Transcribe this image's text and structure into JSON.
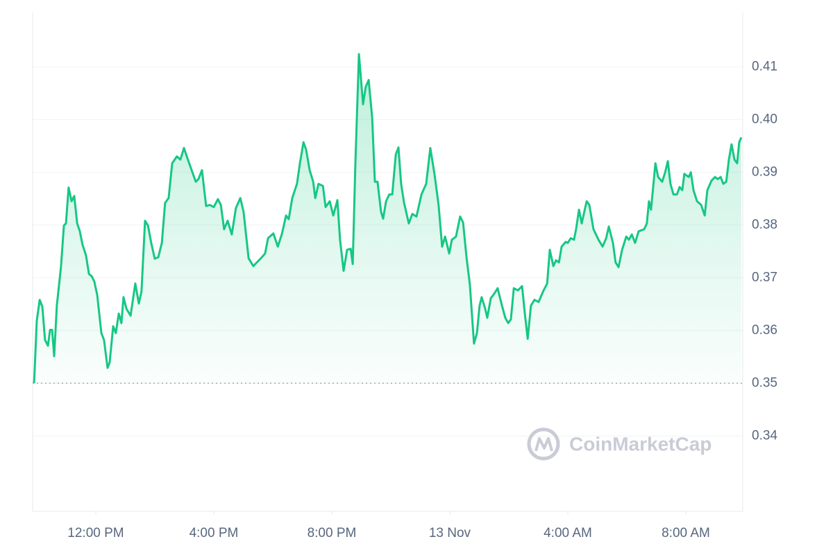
{
  "chart_data": {
    "type": "line",
    "x": [
      9.91,
      10.0,
      10.1,
      10.19,
      10.28,
      10.38,
      10.45,
      10.52,
      10.59,
      10.68,
      10.82,
      10.92,
      10.99,
      11.08,
      11.18,
      11.27,
      11.37,
      11.46,
      11.55,
      11.67,
      11.77,
      11.86,
      11.95,
      12.05,
      12.19,
      12.28,
      12.4,
      12.47,
      12.59,
      12.68,
      12.78,
      12.87,
      12.94,
      13.04,
      13.18,
      13.34,
      13.46,
      13.55,
      13.67,
      13.77,
      13.88,
      14.0,
      14.12,
      14.24,
      14.35,
      14.47,
      14.59,
      14.75,
      14.87,
      14.99,
      15.11,
      15.25,
      15.39,
      15.48,
      15.6,
      15.74,
      15.86,
      16.0,
      16.14,
      16.24,
      16.35,
      16.47,
      16.61,
      16.75,
      16.9,
      17.01,
      17.18,
      17.34,
      17.46,
      17.6,
      17.74,
      17.84,
      18.02,
      18.17,
      18.31,
      18.45,
      18.54,
      18.66,
      18.82,
      18.92,
      19.04,
      19.13,
      19.25,
      19.37,
      19.44,
      19.55,
      19.7,
      19.79,
      19.93,
      20.05,
      20.19,
      20.28,
      20.4,
      20.52,
      20.64,
      20.71,
      20.8,
      20.92,
      21.06,
      21.15,
      21.25,
      21.37,
      21.46,
      21.55,
      21.67,
      21.74,
      21.84,
      21.95,
      22.05,
      22.17,
      22.26,
      22.35,
      22.45,
      22.61,
      22.73,
      22.87,
      23.04,
      23.2,
      23.34,
      23.48,
      23.62,
      23.74,
      23.84,
      23.98,
      24.07,
      24.21,
      24.35,
      24.45,
      24.57,
      24.68,
      24.82,
      24.92,
      25.01,
      25.08,
      25.2,
      25.27,
      25.39,
      25.51,
      25.62,
      25.77,
      25.88,
      25.98,
      26.07,
      26.17,
      26.31,
      26.45,
      26.54,
      26.64,
      26.75,
      26.87,
      27.01,
      27.18,
      27.3,
      27.39,
      27.51,
      27.6,
      27.7,
      27.79,
      27.93,
      28.0,
      28.1,
      28.21,
      28.28,
      28.38,
      28.47,
      28.64,
      28.73,
      28.87,
      29.04,
      29.18,
      29.3,
      29.39,
      29.53,
      29.62,
      29.72,
      29.84,
      29.98,
      30.07,
      30.17,
      30.28,
      30.4,
      30.59,
      30.68,
      30.75,
      30.82,
      30.97,
      31.06,
      31.2,
      31.3,
      31.39,
      31.48,
      31.58,
      31.7,
      31.79,
      31.88,
      31.95,
      32.1,
      32.17,
      32.26,
      32.38,
      32.52,
      32.64,
      32.73,
      32.87,
      32.99,
      33.08,
      33.18,
      33.27,
      33.37,
      33.46,
      33.55,
      33.65,
      33.74,
      33.81,
      33.88
    ],
    "values": [
      0.35,
      0.3618,
      0.3658,
      0.3645,
      0.3582,
      0.3571,
      0.3601,
      0.3601,
      0.3551,
      0.3647,
      0.372,
      0.3799,
      0.3803,
      0.3871,
      0.3845,
      0.3855,
      0.3803,
      0.3788,
      0.3763,
      0.3742,
      0.3707,
      0.3703,
      0.3693,
      0.3667,
      0.3595,
      0.3582,
      0.3529,
      0.3539,
      0.3608,
      0.3595,
      0.3632,
      0.3614,
      0.3663,
      0.3641,
      0.3628,
      0.3689,
      0.3651,
      0.3674,
      0.3808,
      0.3799,
      0.3766,
      0.3736,
      0.3739,
      0.3766,
      0.3842,
      0.3851,
      0.3917,
      0.393,
      0.3924,
      0.3946,
      0.3926,
      0.3904,
      0.3882,
      0.3887,
      0.3904,
      0.3836,
      0.3838,
      0.3834,
      0.3849,
      0.3838,
      0.3792,
      0.3808,
      0.3782,
      0.3832,
      0.3851,
      0.3825,
      0.3737,
      0.3722,
      0.3729,
      0.3737,
      0.3746,
      0.3775,
      0.3784,
      0.3759,
      0.3783,
      0.3818,
      0.3811,
      0.3851,
      0.3878,
      0.3917,
      0.3957,
      0.3943,
      0.3904,
      0.3882,
      0.3851,
      0.3878,
      0.3874,
      0.3834,
      0.3845,
      0.3818,
      0.3847,
      0.3772,
      0.3713,
      0.3753,
      0.3755,
      0.3726,
      0.3917,
      0.4124,
      0.4029,
      0.4062,
      0.4075,
      0.4003,
      0.3882,
      0.3882,
      0.3825,
      0.3812,
      0.3845,
      0.3858,
      0.3858,
      0.3934,
      0.3947,
      0.3878,
      0.3842,
      0.3803,
      0.3821,
      0.3816,
      0.3858,
      0.3878,
      0.3946,
      0.3897,
      0.3838,
      0.3759,
      0.3778,
      0.3746,
      0.3772,
      0.3778,
      0.3816,
      0.3805,
      0.3737,
      0.3687,
      0.3575,
      0.3595,
      0.3647,
      0.3663,
      0.3641,
      0.3624,
      0.3661,
      0.367,
      0.368,
      0.3647,
      0.3624,
      0.3614,
      0.3621,
      0.368,
      0.3676,
      0.3684,
      0.3634,
      0.3584,
      0.3647,
      0.3658,
      0.3654,
      0.3676,
      0.3689,
      0.3753,
      0.3722,
      0.3733,
      0.3729,
      0.3759,
      0.3768,
      0.3766,
      0.3775,
      0.3772,
      0.3792,
      0.3829,
      0.3803,
      0.3845,
      0.3838,
      0.3792,
      0.3772,
      0.3759,
      0.3775,
      0.3797,
      0.3766,
      0.3729,
      0.372,
      0.3753,
      0.3778,
      0.3772,
      0.3782,
      0.3766,
      0.3788,
      0.3792,
      0.3803,
      0.3845,
      0.3829,
      0.3917,
      0.3891,
      0.3882,
      0.39,
      0.3921,
      0.3878,
      0.3858,
      0.3858,
      0.3872,
      0.3866,
      0.3897,
      0.3891,
      0.39,
      0.3866,
      0.3845,
      0.3838,
      0.3818,
      0.3866,
      0.3884,
      0.3891,
      0.3887,
      0.3891,
      0.3878,
      0.3882,
      0.3924,
      0.3953,
      0.3924,
      0.3917,
      0.3957,
      0.3966
    ],
    "color": "#16c784",
    "xlim": [
      9.86,
      33.93
    ],
    "xticks": [
      {
        "value": 12,
        "label": "12:00 PM"
      },
      {
        "value": 16,
        "label": "4:00 PM"
      },
      {
        "value": 20,
        "label": "8:00 PM"
      },
      {
        "value": 24,
        "label": "13 Nov"
      },
      {
        "value": 28,
        "label": "4:00 AM"
      },
      {
        "value": 32,
        "label": "8:00 AM"
      }
    ],
    "ylim": [
      0.3257,
      0.4203
    ],
    "yticks": [
      0.34,
      0.35,
      0.36,
      0.37,
      0.38,
      0.39,
      {
        "value": 0.4,
        "label": "0.40"
      },
      0.41
    ],
    "reference_line": 0.35,
    "grid": true,
    "watermark": "CoinMarketCap"
  }
}
